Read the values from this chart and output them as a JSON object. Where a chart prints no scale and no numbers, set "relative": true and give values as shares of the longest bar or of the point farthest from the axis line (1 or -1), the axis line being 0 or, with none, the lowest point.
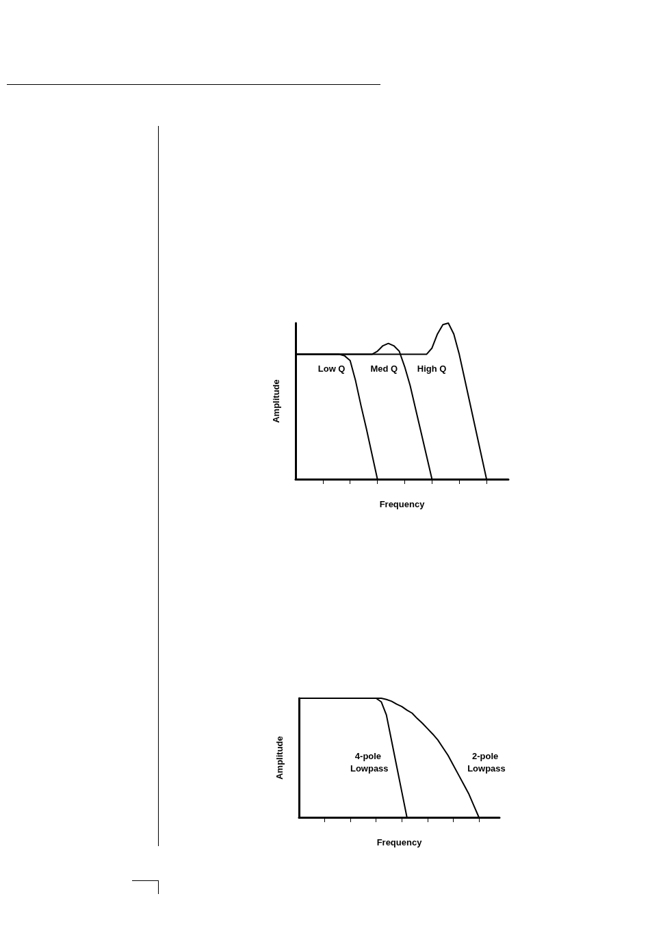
{
  "chart_data": [
    {
      "type": "line",
      "relative": true,
      "xlabel": "Frequency",
      "ylabel": "Amplitude",
      "marker": "none",
      "categories": [
        null,
        null,
        null,
        null,
        null,
        null,
        null,
        null,
        null,
        null,
        null,
        null,
        null,
        null,
        null,
        null,
        null,
        null,
        null,
        null,
        null,
        null,
        null,
        null,
        null,
        null,
        null,
        null,
        null,
        null,
        null,
        null,
        null,
        null,
        null,
        null,
        null,
        null,
        null,
        null
      ],
      "series": [
        {
          "name": "Low Q",
          "color": "#000000",
          "values": [
            0.8,
            0.8,
            0.8,
            0.8,
            0.8,
            0.8,
            0.8,
            0.8,
            0.8,
            0.79,
            0.76,
            0.63,
            0.47,
            0.32,
            0.16,
            0,
            null,
            null,
            null,
            null,
            null,
            null,
            null,
            null,
            null,
            null,
            null,
            null,
            null,
            null,
            null,
            null,
            null,
            null,
            null,
            null,
            null,
            null,
            null,
            null
          ]
        },
        {
          "name": "Med Q",
          "color": "#000000",
          "values": [
            0.8,
            0.8,
            0.8,
            0.8,
            0.8,
            0.8,
            0.8,
            0.8,
            0.8,
            0.8,
            0.8,
            0.8,
            0.8,
            0.8,
            0.8,
            0.82,
            0.855,
            0.87,
            0.855,
            0.82,
            0.72,
            0.6,
            0.45,
            0.3,
            0.15,
            0,
            null,
            null,
            null,
            null,
            null,
            null,
            null,
            null,
            null,
            null,
            null,
            null,
            null,
            null
          ]
        },
        {
          "name": "High Q",
          "color": "#000000",
          "values": [
            0.8,
            0.8,
            0.8,
            0.8,
            0.8,
            0.8,
            0.8,
            0.8,
            0.8,
            0.8,
            0.8,
            0.8,
            0.8,
            0.8,
            0.8,
            0.8,
            0.8,
            0.8,
            0.8,
            0.8,
            0.8,
            0.8,
            0.8,
            0.8,
            0.8,
            0.84,
            0.93,
            0.99,
            1,
            0.93,
            0.8,
            0.64,
            0.48,
            0.32,
            0.16,
            0,
            null,
            null,
            null,
            null
          ]
        }
      ]
    },
    {
      "type": "line",
      "relative": true,
      "xlabel": "Frequency",
      "ylabel": "Amplitude",
      "marker": "none",
      "categories": [
        null,
        null,
        null,
        null,
        null,
        null,
        null,
        null,
        null,
        null,
        null,
        null,
        null,
        null,
        null,
        null,
        null,
        null,
        null,
        null,
        null,
        null,
        null,
        null,
        null,
        null,
        null,
        null,
        null,
        null,
        null,
        null,
        null,
        null,
        null,
        null,
        null,
        null,
        null,
        null
      ],
      "series": [
        {
          "name": "4-pole Lowpass",
          "color": "#000000",
          "values": [
            1,
            1,
            1,
            1,
            1,
            1,
            1,
            1,
            1,
            1,
            1,
            1,
            1,
            1,
            1,
            1,
            0.97,
            0.86,
            0.645,
            0.43,
            0.215,
            0,
            null,
            null,
            null,
            null,
            null,
            null,
            null,
            null,
            null,
            null,
            null,
            null,
            null,
            null,
            null,
            null,
            null,
            null
          ]
        },
        {
          "name": "2-pole Lowpass",
          "color": "#000000",
          "values": [
            1,
            1,
            1,
            1,
            1,
            1,
            1,
            1,
            1,
            1,
            1,
            1,
            1,
            1,
            1,
            1,
            1,
            0.99,
            0.975,
            0.95,
            0.93,
            0.9,
            0.875,
            0.83,
            0.79,
            0.745,
            0.7,
            0.65,
            0.585,
            0.52,
            0.44,
            0.36,
            0.28,
            0.2,
            0.1,
            0,
            null,
            null,
            null,
            null
          ]
        }
      ]
    }
  ]
}
